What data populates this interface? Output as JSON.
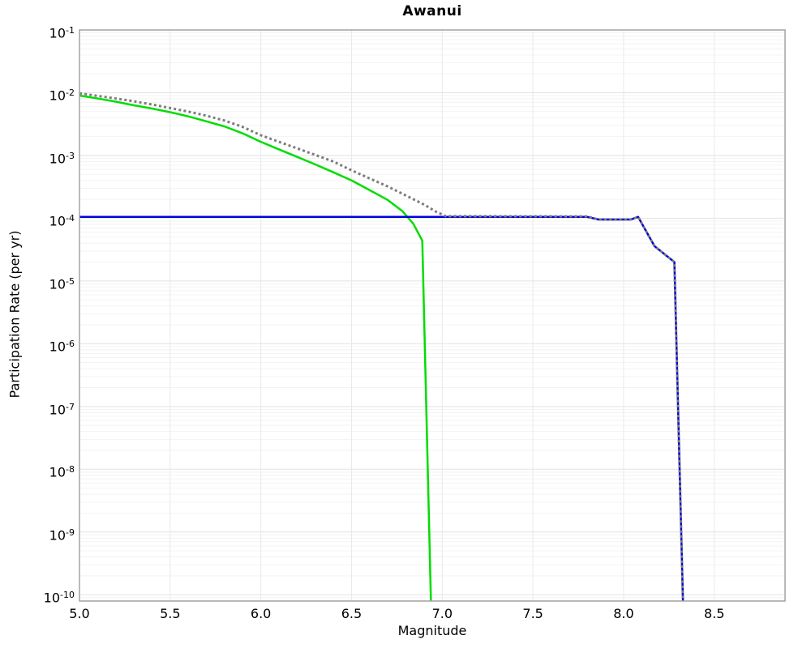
{
  "figure": {
    "title": "Awanui",
    "xlabel": "Magnitude",
    "ylabel": "Participation Rate (per yr)"
  },
  "chart_data": {
    "type": "line",
    "title": "Awanui",
    "xlabel": "Magnitude",
    "ylabel": "Participation Rate (per yr)",
    "legend": "none",
    "grid": {
      "major_color": "#e2e2e2",
      "minor_color": "#f3f3f3",
      "vertical_color": "#e9e9e9",
      "frame_color": "#a3a3a3"
    },
    "x_axis": {
      "min": 5.0,
      "max": 8.89,
      "ticks": [
        5.0,
        5.5,
        6.0,
        6.5,
        7.0,
        7.5,
        8.0,
        8.5
      ]
    },
    "y_axis": {
      "scale": "log",
      "tick_base": 10,
      "max_exp": -1,
      "min_exp": -10.1,
      "tick_exponents": [
        -1,
        -2,
        -3,
        -4,
        -5,
        -6,
        -7,
        -8,
        -9,
        -10
      ]
    },
    "series": [
      {
        "name": "green-solid",
        "color": "#00dd00",
        "style": "solid",
        "width": 2.5,
        "points": [
          [
            5.0,
            0.009
          ],
          [
            5.1,
            0.0081
          ],
          [
            5.2,
            0.0072
          ],
          [
            5.3,
            0.0063
          ],
          [
            5.4,
            0.0056
          ],
          [
            5.5,
            0.0049
          ],
          [
            5.6,
            0.0042
          ],
          [
            5.7,
            0.0035
          ],
          [
            5.8,
            0.0029
          ],
          [
            5.9,
            0.00225
          ],
          [
            6.0,
            0.00165
          ],
          [
            6.1,
            0.00125
          ],
          [
            6.2,
            0.00095
          ],
          [
            6.3,
            0.00072
          ],
          [
            6.4,
            0.00054
          ],
          [
            6.5,
            0.0004
          ],
          [
            6.6,
            0.00028
          ],
          [
            6.7,
            0.000195
          ],
          [
            6.78,
            0.00013
          ],
          [
            6.84,
            8.2e-05
          ],
          [
            6.89,
            4.4e-05
          ],
          [
            6.945,
            1e-11
          ]
        ]
      },
      {
        "name": "blue-solid",
        "color": "#0000dd",
        "style": "solid",
        "width": 2.5,
        "points": [
          [
            5.0,
            0.000105
          ],
          [
            7.8,
            0.000105
          ],
          [
            7.86,
            9.55e-05
          ],
          [
            8.04,
            9.55e-05
          ],
          [
            8.08,
            0.000105
          ],
          [
            8.17,
            3.6e-05
          ],
          [
            8.28,
            2e-05
          ],
          [
            8.335,
            1e-11
          ]
        ]
      },
      {
        "name": "gray-dotted",
        "color": "#7d7d7d",
        "style": "dotted",
        "width": 3,
        "points": [
          [
            5.0,
            0.0098
          ],
          [
            5.1,
            0.0089
          ],
          [
            5.2,
            0.0081
          ],
          [
            5.3,
            0.0073
          ],
          [
            5.4,
            0.0065
          ],
          [
            5.5,
            0.0057
          ],
          [
            5.6,
            0.005
          ],
          [
            5.7,
            0.0043
          ],
          [
            5.8,
            0.0036
          ],
          [
            5.9,
            0.00285
          ],
          [
            6.0,
            0.0021
          ],
          [
            6.1,
            0.00165
          ],
          [
            6.2,
            0.0013
          ],
          [
            6.3,
            0.00102
          ],
          [
            6.4,
            0.0008
          ],
          [
            6.5,
            0.00058
          ],
          [
            6.6,
            0.00043
          ],
          [
            6.7,
            0.00032
          ],
          [
            6.8,
            0.00023
          ],
          [
            6.9,
            0.000165
          ],
          [
            6.97,
            0.000125
          ],
          [
            7.02,
            0.000108
          ],
          [
            7.8,
            0.000107
          ],
          [
            7.86,
            9.55e-05
          ],
          [
            8.04,
            9.55e-05
          ],
          [
            8.08,
            0.000105
          ],
          [
            8.17,
            3.6e-05
          ],
          [
            8.28,
            2e-05
          ],
          [
            8.335,
            1e-11
          ]
        ]
      }
    ]
  }
}
